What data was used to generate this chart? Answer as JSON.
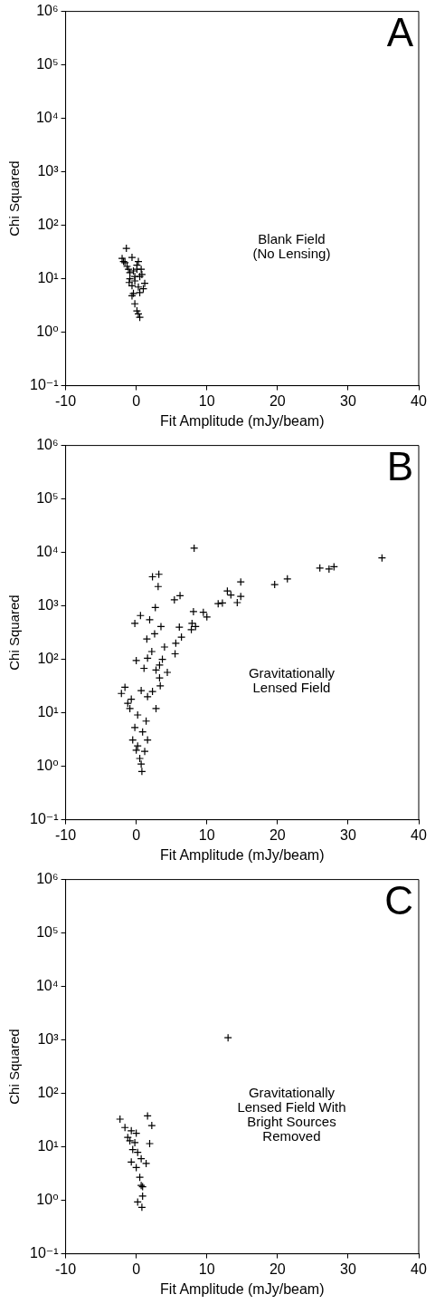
{
  "chart_data": [
    {
      "type": "scatter",
      "xlabel": "Fit Amplitude (mJy/beam)",
      "ylabel": "Chi Squared",
      "annotations": [
        "A",
        "Blank Field\n(No Lensing)"
      ],
      "log": "y",
      "grid": false,
      "legend": false,
      "marker": "cross",
      "xlim": [
        -10,
        40
      ],
      "xticks": [
        -10,
        0,
        10,
        20,
        30,
        40
      ],
      "ylim": [
        0.1,
        1000000
      ],
      "yticks": [
        {
          "value": 0.1,
          "label": "10⁻¹"
        },
        {
          "value": 1,
          "label": "10⁰"
        },
        {
          "value": 10,
          "label": "10¹"
        },
        {
          "value": 100,
          "label": "10²"
        },
        {
          "value": 1000,
          "label": "10³"
        },
        {
          "value": 10000,
          "label": "10⁴"
        },
        {
          "value": 100000,
          "label": "10⁵"
        },
        {
          "value": 1000000,
          "label": "10⁶"
        }
      ],
      "series": [
        {
          "color": "#000000",
          "x": [
            -1.4,
            -2.0,
            -1.8,
            -0.6,
            0.3,
            0.1,
            -1.1,
            -0.4,
            0.8,
            1.2,
            0.5,
            -0.9,
            -0.2,
            -0.6,
            0.3,
            1.0,
            -0.4,
            0.5,
            -0.6,
            -0.2,
            0.1,
            0.3,
            0.5,
            -1.3,
            -0.9,
            -0.2,
            -1.0,
            0.1,
            -1.6,
            0.7
          ],
          "values": [
            37,
            24,
            21,
            25,
            21,
            18,
            15,
            14,
            12,
            8.2,
            11,
            10,
            9.1,
            7.4,
            7.0,
            6.5,
            5.3,
            5.5,
            4.8,
            3.4,
            2.5,
            2.2,
            1.9,
            17,
            13,
            11,
            8.5,
            15,
            20,
            15
          ]
        }
      ]
    },
    {
      "type": "scatter",
      "xlabel": "Fit Amplitude (mJy/beam)",
      "ylabel": "Chi Squared",
      "annotations": [
        "B",
        "Gravitationally\nLensed Field"
      ],
      "log": "y",
      "grid": false,
      "legend": false,
      "marker": "cross",
      "xlim": [
        -10,
        40
      ],
      "xticks": [
        -10,
        0,
        10,
        20,
        30,
        40
      ],
      "ylim": [
        0.1,
        1000000
      ],
      "yticks": [
        {
          "value": 0.1,
          "label": "10⁻¹"
        },
        {
          "value": 1,
          "label": "10⁰"
        },
        {
          "value": 10,
          "label": "10¹"
        },
        {
          "value": 100,
          "label": "10²"
        },
        {
          "value": 1000,
          "label": "10³"
        },
        {
          "value": 10000,
          "label": "10⁴"
        },
        {
          "value": 100000,
          "label": "10⁵"
        },
        {
          "value": 1000000,
          "label": "10⁶"
        }
      ],
      "series": [
        {
          "color": "#000000",
          "x": [
            8.2,
            34.8,
            26.0,
            27.3,
            28.0,
            21.4,
            19.6,
            14.8,
            12.9,
            13.4,
            14.8,
            14.3,
            11.6,
            12.2,
            2.3,
            3.2,
            3.1,
            5.4,
            6.2,
            2.7,
            8.1,
            9.5,
            10.0,
            7.9,
            8.4,
            7.8,
            0.6,
            -0.2,
            1.9,
            3.5,
            6.1,
            6.4,
            2.6,
            1.5,
            4.0,
            5.6,
            5.5,
            2.2,
            1.6,
            3.7,
            3.3,
            2.8,
            4.4,
            0.0,
            1.1,
            3.3,
            3.4,
            2.8,
            -2.1,
            -1.6,
            -0.7,
            0.7,
            1.6,
            2.3,
            -0.9,
            0.2,
            1.4,
            -0.2,
            0.9,
            1.6,
            0.2,
            1.2,
            0.5,
            0.7,
            0.8,
            -1.2,
            -0.5,
            0.0
          ],
          "values": [
            12000,
            7900,
            5100,
            4900,
            5400,
            3200,
            2500,
            2800,
            1900,
            1600,
            1500,
            1150,
            1100,
            1130,
            3500,
            3900,
            2300,
            1300,
            1550,
            930,
            780,
            760,
            620,
            470,
            410,
            360,
            660,
            470,
            550,
            410,
            400,
            260,
            300,
            240,
            170,
            200,
            127,
            140,
            105,
            100,
            78,
            63,
            57,
            95,
            68,
            45,
            32,
            12,
            23,
            30,
            18,
            26,
            20,
            25,
            12,
            9.1,
            7,
            5.3,
            4.4,
            3.1,
            2.4,
            1.9,
            1.4,
            1.1,
            0.8,
            15,
            3.1,
            2.0
          ]
        }
      ]
    },
    {
      "type": "scatter",
      "xlabel": "Fit Amplitude (mJy/beam)",
      "ylabel": "Chi Squared",
      "annotations": [
        "C",
        "Gravitationally\nLensed Field With\nBright Sources\nRemoved"
      ],
      "log": "y",
      "grid": false,
      "legend": false,
      "marker": "cross",
      "xlim": [
        -10,
        40
      ],
      "xticks": [
        -10,
        0,
        10,
        20,
        30,
        40
      ],
      "ylim": [
        0.1,
        1000000
      ],
      "yticks": [
        {
          "value": 0.1,
          "label": "10⁻¹"
        },
        {
          "value": 1,
          "label": "10⁰"
        },
        {
          "value": 10,
          "label": "10¹"
        },
        {
          "value": 100,
          "label": "10²"
        },
        {
          "value": 1000,
          "label": "10³"
        },
        {
          "value": 10000,
          "label": "10⁴"
        },
        {
          "value": 100000,
          "label": "10⁵"
        },
        {
          "value": 1000000,
          "label": "10⁶"
        }
      ],
      "series": [
        {
          "color": "#000000",
          "x": [
            13.0,
            -2.3,
            1.6,
            2.2,
            -1.6,
            -0.7,
            -1.2,
            -0.2,
            0.2,
            1.9,
            -0.7,
            0.7,
            0.0,
            1.4,
            0.5,
            0.7,
            0.9,
            0.9,
            0.2,
            0.8,
            -0.9,
            0.0,
            -0.5
          ],
          "values": [
            1100,
            33,
            38,
            25,
            23,
            20,
            15,
            12,
            7.9,
            11.5,
            5.2,
            6.0,
            4.1,
            4.9,
            2.7,
            1.9,
            1.8,
            1.2,
            0.93,
            0.74,
            13,
            18,
            8.9
          ]
        }
      ]
    }
  ]
}
